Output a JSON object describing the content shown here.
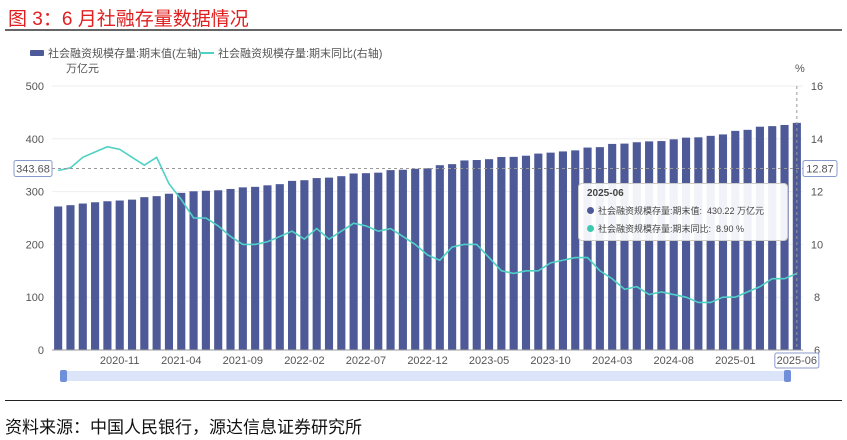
{
  "title": "图 3：6 月社融存量数据情况",
  "source": "资料来源：中国人民银行，源达信息证券研究所",
  "colors": {
    "bar": "#4e5a98",
    "line": "#4fd1c5",
    "title": "#e02020"
  },
  "chart_data": {
    "type": "bar+line",
    "legend": [
      "社会融资规模存量:期末值(左轴)",
      "社会融资规模存量:期末同比(右轴)"
    ],
    "legend_position": "top-left",
    "ylabel_left": "万亿元",
    "ylabel_right": "%",
    "ylim_left": [
      0,
      500
    ],
    "yticks_left": [
      "0",
      "100",
      "200",
      "300",
      "400",
      "500"
    ],
    "ylim_right": [
      6,
      16
    ],
    "yticks_right": [
      "6",
      "8",
      "10",
      "12",
      "14",
      "16"
    ],
    "xtick_labels": [
      "2020-11",
      "2021-04",
      "2021-09",
      "2022-02",
      "2022-07",
      "2022-12",
      "2023-05",
      "2023-10",
      "2024-03",
      "2024-08",
      "2025-01",
      "2025-06"
    ],
    "marker_left": "343.68",
    "marker_right": "12.87",
    "x": [
      "2020-06",
      "2020-07",
      "2020-08",
      "2020-09",
      "2020-10",
      "2020-11",
      "2020-12",
      "2021-01",
      "2021-02",
      "2021-03",
      "2021-04",
      "2021-05",
      "2021-06",
      "2021-07",
      "2021-08",
      "2021-09",
      "2021-10",
      "2021-11",
      "2021-12",
      "2022-01",
      "2022-02",
      "2022-03",
      "2022-04",
      "2022-05",
      "2022-06",
      "2022-07",
      "2022-08",
      "2022-09",
      "2022-10",
      "2022-11",
      "2022-12",
      "2023-01",
      "2023-02",
      "2023-03",
      "2023-04",
      "2023-05",
      "2023-06",
      "2023-07",
      "2023-08",
      "2023-09",
      "2023-10",
      "2023-11",
      "2023-12",
      "2024-01",
      "2024-02",
      "2024-03",
      "2024-04",
      "2024-05",
      "2024-06",
      "2024-07",
      "2024-08",
      "2024-09",
      "2024-10",
      "2024-11",
      "2024-12",
      "2025-01",
      "2025-02",
      "2025-03",
      "2025-04",
      "2025-05",
      "2025-06"
    ],
    "series": [
      {
        "name": "社会融资规模存量:期末值(左轴)",
        "type": "bar",
        "values": [
          271.8,
          274.3,
          277.4,
          279.8,
          281.7,
          283.1,
          284.8,
          289.5,
          291.4,
          296.0,
          297.6,
          300.6,
          301.6,
          302.5,
          305.0,
          308.0,
          309.0,
          311.9,
          314.1,
          320.3,
          321.6,
          325.6,
          326.5,
          329.2,
          334.3,
          334.9,
          335.9,
          340.7,
          341.4,
          343.2,
          344.2,
          350.0,
          352.0,
          359.0,
          359.8,
          361.4,
          365.5,
          365.8,
          368.0,
          372.0,
          373.8,
          376.1,
          378.1,
          383.4,
          384.2,
          390.3,
          390.9,
          393.5,
          395.1,
          395.7,
          399.0,
          402.2,
          402.8,
          405.6,
          408.3,
          415.0,
          417.0,
          422.9,
          424.0,
          426.2,
          430.22
        ]
      },
      {
        "name": "社会融资规模存量:期末同比(右轴)",
        "type": "line",
        "values": [
          12.8,
          12.9,
          13.3,
          13.5,
          13.7,
          13.6,
          13.3,
          13.0,
          13.3,
          12.3,
          11.7,
          11.0,
          11.0,
          10.7,
          10.3,
          10.0,
          10.0,
          10.1,
          10.3,
          10.5,
          10.2,
          10.6,
          10.2,
          10.5,
          10.8,
          10.7,
          10.5,
          10.6,
          10.3,
          10.0,
          9.6,
          9.4,
          9.9,
          10.0,
          10.0,
          9.5,
          9.0,
          8.9,
          9.0,
          9.0,
          9.3,
          9.4,
          9.5,
          9.5,
          9.0,
          8.7,
          8.3,
          8.4,
          8.1,
          8.2,
          8.1,
          8.0,
          7.8,
          7.8,
          8.0,
          8.0,
          8.2,
          8.4,
          8.7,
          8.7,
          8.9
        ]
      }
    ]
  },
  "tooltip": {
    "date": "2025-06",
    "bar_label": "社会融资规模存量:期末值:",
    "bar_value": "430.22 万亿元",
    "line_label": "社会融资规模存量:期末同比:",
    "line_value": "8.90 %"
  }
}
